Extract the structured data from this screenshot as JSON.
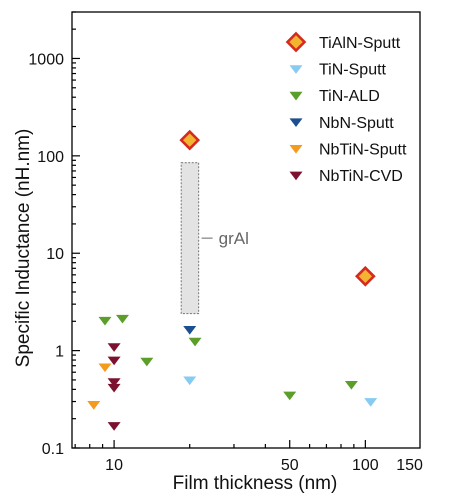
{
  "chart_data": {
    "type": "scatter",
    "xlabel": "Film thickness (nm)",
    "ylabel": "Specific Inductance (nH.nm)",
    "x_scale": "log",
    "y_scale": "log",
    "xlim": [
      6.8,
      165
    ],
    "ylim": [
      0.1,
      3000
    ],
    "x_ticks": [
      10,
      50,
      100,
      150
    ],
    "x_tick_labels": [
      "10",
      "50",
      "100",
      "150"
    ],
    "y_ticks": [
      0.1,
      1,
      10,
      100,
      1000
    ],
    "y_tick_labels": [
      "0.1",
      "1",
      "10",
      "100",
      "1000"
    ],
    "grid": false,
    "legend_position": "top-right",
    "series": [
      {
        "name": "TiAlN-Sputt",
        "marker": "diamond",
        "color": "#f2b431",
        "edge": "#d62a1e",
        "points": [
          [
            20,
            145
          ],
          [
            100,
            5.8
          ]
        ]
      },
      {
        "name": "TiN-Sputt",
        "marker": "triangle-down",
        "color": "#87cbf3",
        "points": [
          [
            20,
            0.5
          ],
          [
            105,
            0.3
          ]
        ]
      },
      {
        "name": "TiN-ALD",
        "marker": "triangle-down",
        "color": "#5b9e2a",
        "points": [
          [
            9.2,
            2.05
          ],
          [
            10.8,
            2.15
          ],
          [
            13.5,
            0.78
          ],
          [
            21,
            1.25
          ],
          [
            50,
            0.35
          ],
          [
            88,
            0.45
          ]
        ]
      },
      {
        "name": "NbN-Sputt",
        "marker": "triangle-down",
        "color": "#1c4f8f",
        "points": [
          [
            20,
            1.65
          ]
        ]
      },
      {
        "name": "NbTiN-Sputt",
        "marker": "triangle-down",
        "color": "#f49a1c",
        "points": [
          [
            8.3,
            0.28
          ],
          [
            9.2,
            0.68
          ]
        ]
      },
      {
        "name": "NbTiN-CVD",
        "marker": "triangle-down",
        "color": "#7d1230",
        "points": [
          [
            10,
            1.1
          ],
          [
            10,
            0.8
          ],
          [
            10,
            0.48
          ],
          [
            10,
            0.42
          ],
          [
            10,
            0.17
          ]
        ]
      }
    ],
    "annotations": [
      {
        "text": "grAl",
        "x_range": [
          18.5,
          21.7
        ],
        "y_range": [
          2.4,
          85
        ],
        "fill": "#e3e3e3",
        "edge": "#808080"
      }
    ]
  }
}
